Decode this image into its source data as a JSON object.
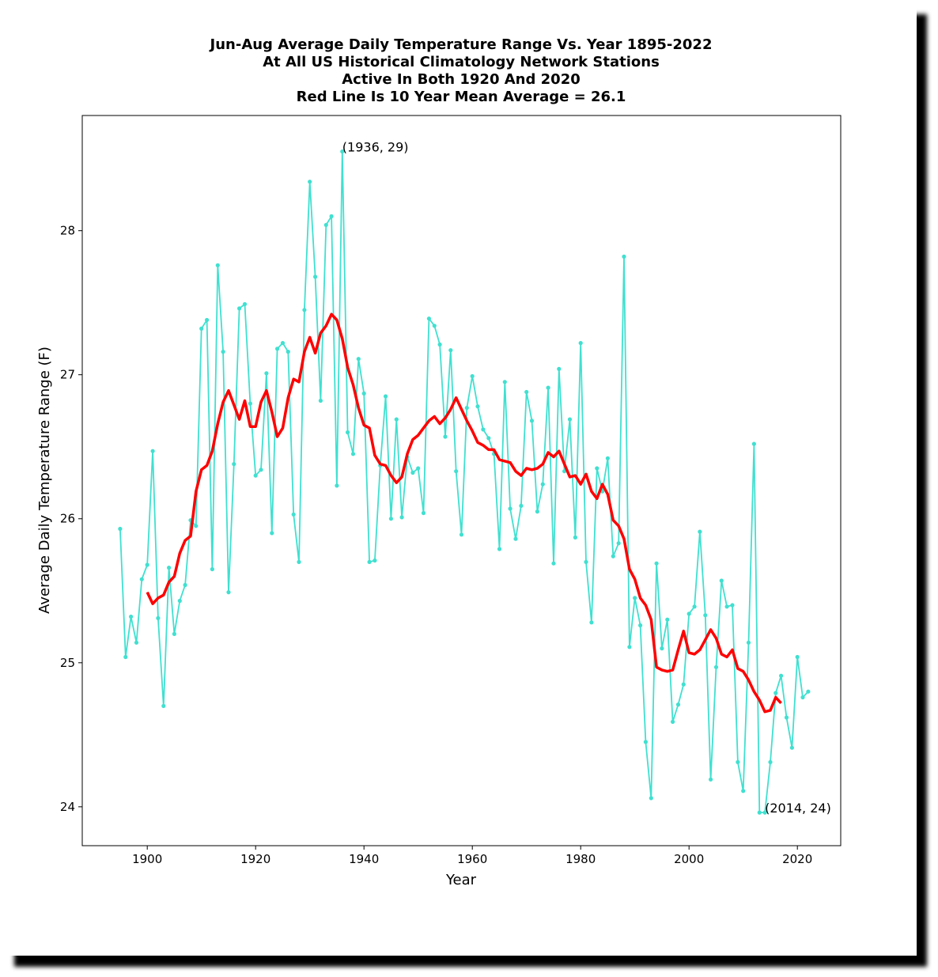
{
  "chart_data": {
    "type": "line",
    "title_lines": [
      "Jun-Aug Average Daily Temperature Range Vs. Year 1895-2022",
      "At All US Historical Climatology Network Stations",
      "Active In Both 1920 And 2020",
      "Red Line Is 10 Year Mean  Average = 26.1"
    ],
    "xlabel": "Year",
    "ylabel": "Average Daily Temperature Range (F)",
    "xlim": [
      1888,
      2028
    ],
    "ylim": [
      23.73,
      28.8
    ],
    "xticks": [
      1900,
      1920,
      1940,
      1960,
      1980,
      2000,
      2020
    ],
    "xtick_labels": [
      "1900",
      "1920",
      "1940",
      "1960",
      "1980",
      "2000",
      "2020"
    ],
    "yticks": [
      24,
      25,
      26,
      27,
      28
    ],
    "ytick_labels": [
      "24",
      "25",
      "26",
      "27",
      "28"
    ],
    "series": [
      {
        "color": "#40e0d0",
        "marker": "dot",
        "x": [
          1895,
          1896,
          1897,
          1898,
          1899,
          1900,
          1901,
          1902,
          1903,
          1904,
          1905,
          1906,
          1907,
          1908,
          1909,
          1910,
          1911,
          1912,
          1913,
          1914,
          1915,
          1916,
          1917,
          1918,
          1919,
          1920,
          1921,
          1922,
          1923,
          1924,
          1925,
          1926,
          1927,
          1928,
          1929,
          1930,
          1931,
          1932,
          1933,
          1934,
          1935,
          1936,
          1937,
          1938,
          1939,
          1940,
          1941,
          1942,
          1943,
          1944,
          1945,
          1946,
          1947,
          1948,
          1949,
          1950,
          1951,
          1952,
          1953,
          1954,
          1955,
          1956,
          1957,
          1958,
          1959,
          1960,
          1961,
          1962,
          1963,
          1964,
          1965,
          1966,
          1967,
          1968,
          1969,
          1970,
          1971,
          1972,
          1973,
          1974,
          1975,
          1976,
          1977,
          1978,
          1979,
          1980,
          1981,
          1982,
          1983,
          1984,
          1985,
          1986,
          1987,
          1988,
          1989,
          1990,
          1991,
          1992,
          1993,
          1994,
          1995,
          1996,
          1997,
          1998,
          1999,
          2000,
          2001,
          2002,
          2003,
          2004,
          2005,
          2006,
          2007,
          2008,
          2009,
          2010,
          2011,
          2012,
          2013,
          2014,
          2015,
          2016,
          2017,
          2018,
          2019,
          2020,
          2021,
          2022
        ],
        "y": [
          25.93,
          25.04,
          25.32,
          25.14,
          25.58,
          25.68,
          26.47,
          25.31,
          24.7,
          25.66,
          25.2,
          25.43,
          25.54,
          25.99,
          25.95,
          27.32,
          27.38,
          25.65,
          27.76,
          27.16,
          25.49,
          26.38,
          27.46,
          27.49,
          26.8,
          26.3,
          26.34,
          27.01,
          25.9,
          27.18,
          27.22,
          27.16,
          26.03,
          25.7,
          27.45,
          28.34,
          27.68,
          26.82,
          28.04,
          28.1,
          26.23,
          28.55,
          26.6,
          26.45,
          27.11,
          26.87,
          25.7,
          25.71,
          26.37,
          26.85,
          26.0,
          26.69,
          26.01,
          26.43,
          26.32,
          26.35,
          26.04,
          27.39,
          27.34,
          27.21,
          26.57,
          27.17,
          26.33,
          25.89,
          26.77,
          26.99,
          26.78,
          26.62,
          26.56,
          26.45,
          25.79,
          26.95,
          26.07,
          25.86,
          26.09,
          26.88,
          26.68,
          26.05,
          26.24,
          26.91,
          25.69,
          27.04,
          26.33,
          26.69,
          25.87,
          27.22,
          25.7,
          25.28,
          26.35,
          26.19,
          26.42,
          25.74,
          25.83,
          27.82,
          25.11,
          25.45,
          25.26,
          24.45,
          24.06,
          25.69,
          25.1,
          25.3,
          24.59,
          24.71,
          24.85,
          25.34,
          25.39,
          25.91,
          25.33,
          24.19,
          24.97,
          25.57,
          25.39,
          25.4,
          24.31,
          24.11,
          25.14,
          26.52,
          23.96,
          23.96,
          24.31,
          24.79,
          24.91,
          24.62,
          24.41,
          25.04,
          24.76,
          24.8
        ]
      },
      {
        "color": "#ff0000",
        "marker": "none",
        "x": [
          1900,
          1901,
          1902,
          1903,
          1904,
          1905,
          1906,
          1907,
          1908,
          1909,
          1910,
          1911,
          1912,
          1913,
          1914,
          1915,
          1916,
          1917,
          1918,
          1919,
          1920,
          1921,
          1922,
          1923,
          1924,
          1925,
          1926,
          1927,
          1928,
          1929,
          1930,
          1931,
          1932,
          1933,
          1934,
          1935,
          1936,
          1937,
          1938,
          1939,
          1940,
          1941,
          1942,
          1943,
          1944,
          1945,
          1946,
          1947,
          1948,
          1949,
          1950,
          1951,
          1952,
          1953,
          1954,
          1955,
          1956,
          1957,
          1958,
          1959,
          1960,
          1961,
          1962,
          1963,
          1964,
          1965,
          1966,
          1967,
          1968,
          1969,
          1970,
          1971,
          1972,
          1973,
          1974,
          1975,
          1976,
          1977,
          1978,
          1979,
          1980,
          1981,
          1982,
          1983,
          1984,
          1985,
          1986,
          1987,
          1988,
          1989,
          1990,
          1991,
          1992,
          1993,
          1994,
          1995,
          1996,
          1997,
          1998,
          1999,
          2000,
          2001,
          2002,
          2003,
          2004,
          2005,
          2006,
          2007,
          2008,
          2009,
          2010,
          2011,
          2012,
          2013,
          2014,
          2015,
          2016,
          2017
        ],
        "y": [
          25.49,
          25.41,
          25.45,
          25.47,
          25.56,
          25.6,
          25.76,
          25.85,
          25.88,
          26.19,
          26.34,
          26.37,
          26.47,
          26.66,
          26.81,
          26.89,
          26.79,
          26.69,
          26.82,
          26.64,
          26.64,
          26.81,
          26.89,
          26.74,
          26.57,
          26.63,
          26.84,
          26.97,
          26.95,
          27.16,
          27.26,
          27.15,
          27.29,
          27.34,
          27.42,
          27.38,
          27.25,
          27.05,
          26.93,
          26.77,
          26.65,
          26.63,
          26.44,
          26.38,
          26.37,
          26.3,
          26.25,
          26.29,
          26.45,
          26.55,
          26.58,
          26.63,
          26.68,
          26.71,
          26.66,
          26.7,
          26.76,
          26.84,
          26.76,
          26.68,
          26.61,
          26.53,
          26.51,
          26.48,
          26.48,
          26.41,
          26.4,
          26.39,
          26.33,
          26.3,
          26.35,
          26.34,
          26.35,
          26.38,
          26.46,
          26.43,
          26.47,
          26.38,
          26.29,
          26.3,
          26.24,
          26.31,
          26.19,
          26.14,
          26.24,
          26.17,
          25.99,
          25.95,
          25.86,
          25.65,
          25.58,
          25.45,
          25.4,
          25.3,
          24.97,
          24.95,
          24.94,
          24.95,
          25.09,
          25.22,
          25.07,
          25.06,
          25.09,
          25.16,
          25.23,
          25.17,
          25.06,
          25.04,
          25.09,
          24.96,
          24.94,
          24.88,
          24.8,
          24.74,
          24.66,
          24.67,
          24.76,
          24.72
        ]
      }
    ],
    "annotations": [
      {
        "text": "(1936, 29)",
        "x": 1936,
        "y": 28.55
      },
      {
        "text": "(2014, 24)",
        "x": 2014,
        "y": 23.96
      }
    ],
    "grid": false,
    "legend": "none"
  }
}
